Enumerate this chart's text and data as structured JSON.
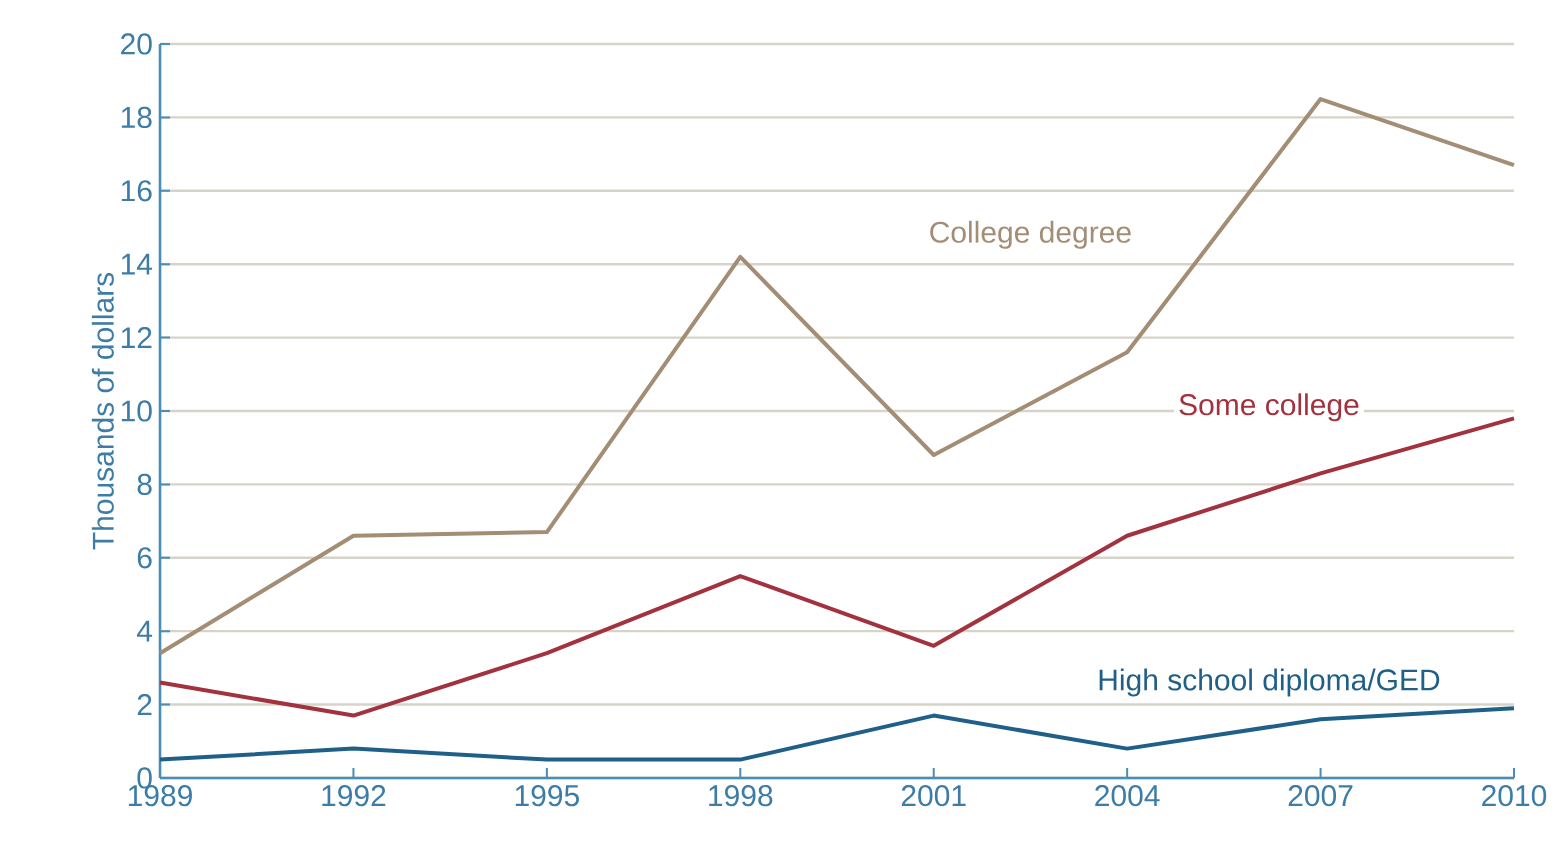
{
  "chart_data": {
    "type": "line",
    "ylabel": "Thousands of dollars",
    "x": [
      1989,
      1992,
      1995,
      1998,
      2001,
      2004,
      2007,
      2010
    ],
    "xlim": [
      1989,
      2010
    ],
    "xticks": [
      1989,
      1992,
      1995,
      1998,
      2001,
      2004,
      2007,
      2010
    ],
    "ylim": [
      0,
      20
    ],
    "yticks": [
      0,
      2,
      4,
      6,
      8,
      10,
      12,
      14,
      16,
      18,
      20
    ],
    "grid": "y",
    "legend": false,
    "marker": "none",
    "line_style": "solid",
    "series": [
      {
        "name": "College degree",
        "color": "#a38d74",
        "values": [
          3.4,
          6.6,
          6.7,
          14.2,
          8.8,
          11.6,
          18.5,
          16.7
        ]
      },
      {
        "name": "Some college",
        "color": "#a3323f",
        "values": [
          2.6,
          1.7,
          3.4,
          5.5,
          3.6,
          6.6,
          8.3,
          9.8
        ]
      },
      {
        "name": "High school diploma/GED",
        "color": "#1f5f88",
        "values": [
          0.5,
          0.8,
          0.5,
          0.5,
          1.7,
          0.8,
          1.6,
          1.9
        ]
      }
    ]
  }
}
